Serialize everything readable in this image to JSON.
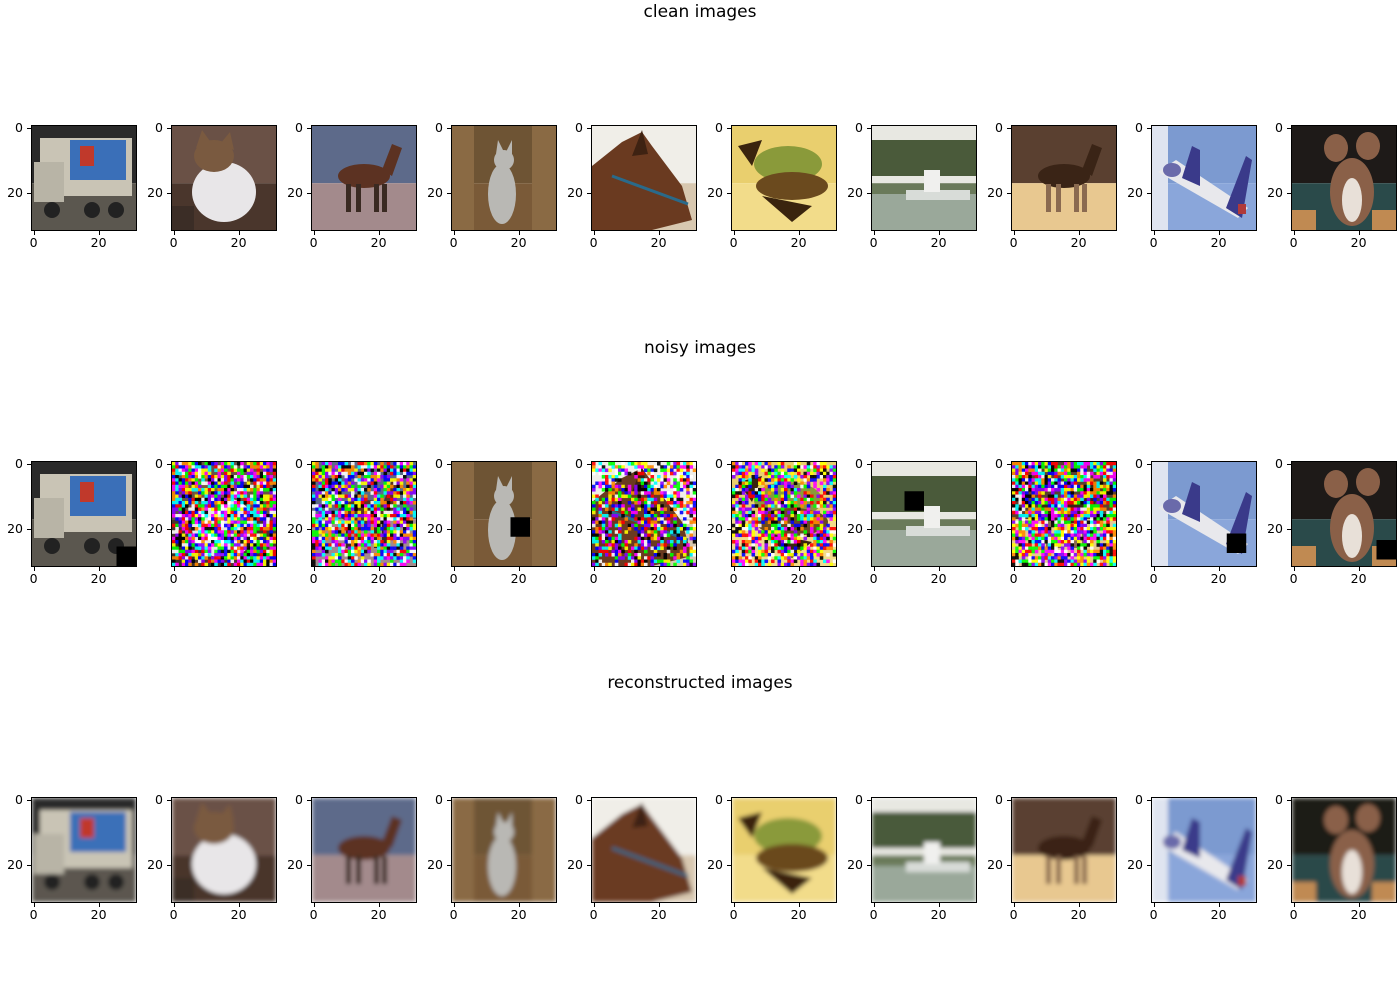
{
  "chart_data": {
    "type": "image-grid",
    "rows": [
      {
        "title": "clean images",
        "variant": "clean",
        "images": [
          {
            "subject": "truck",
            "sky": "#2a2a2a",
            "ground": "#5b574f",
            "main": "#c9c4b5",
            "accent": "#3a6fb8",
            "accent2": "#c0392b",
            "occlusion": null
          },
          {
            "subject": "cat",
            "sky": "#6a5146",
            "ground": "#4a362c",
            "main": "#e8e6e8",
            "accent": "#7a5a40",
            "accent2": "#3b2d26",
            "occlusion": null
          },
          {
            "subject": "horse",
            "sky": "#5d6a8a",
            "ground": "#a38a8c",
            "main": "#5c3222",
            "accent": "#3a2a22",
            "accent2": "#c8b6b5",
            "occlusion": null
          },
          {
            "subject": "cat-standing",
            "sky": "#6e5434",
            "ground": "#7a5a38",
            "main": "#b9b8b4",
            "accent": "#4b3a28",
            "accent2": "#8a6a44",
            "occlusion": null
          },
          {
            "subject": "horse-head",
            "sky": "#f0eee8",
            "ground": "#d8c8b0",
            "main": "#6a3a20",
            "accent": "#3e2212",
            "accent2": "#2a6a8a",
            "occlusion": null
          },
          {
            "subject": "frog",
            "sky": "#e9cf6e",
            "ground": "#f2dc8a",
            "main": "#6b4a1e",
            "accent": "#8a9a3a",
            "accent2": "#3a240e",
            "occlusion": null
          },
          {
            "subject": "ship",
            "sky": "#e8e8e2",
            "ground": "#6a7a5a",
            "main": "#d8dcd8",
            "accent": "#4a5a3a",
            "accent2": "#9aa89a",
            "occlusion": null
          },
          {
            "subject": "deer",
            "sky": "#5a4030",
            "ground": "#e8c890",
            "main": "#3a2416",
            "accent": "#8a6a50",
            "accent2": "#c8a070",
            "occlusion": null
          },
          {
            "subject": "airplane",
            "sky": "#7c9ad0",
            "ground": "#8aa6da",
            "main": "#e8e8ec",
            "accent": "#3a3a8a",
            "accent2": "#b03a3a",
            "occlusion": null
          },
          {
            "subject": "dog",
            "sky": "#1e1a18",
            "ground": "#2a4a4a",
            "main": "#8a6048",
            "accent": "#e8e0d8",
            "accent2": "#4a2e1e",
            "occlusion": null
          }
        ]
      },
      {
        "title": "noisy images",
        "variant": "noisy",
        "images": [
          {
            "subject": "truck",
            "noise": 0,
            "occlusion": [
              26,
              26,
              6
            ]
          },
          {
            "subject": "cat",
            "noise": 0.85,
            "occlusion": null
          },
          {
            "subject": "horse",
            "noise": 0.8,
            "occlusion": null
          },
          {
            "subject": "cat-standing",
            "noise": 0,
            "occlusion": [
              18,
              17,
              6
            ]
          },
          {
            "subject": "horse-head",
            "noise": 0.6,
            "occlusion": null
          },
          {
            "subject": "frog",
            "noise": 0.65,
            "occlusion": null
          },
          {
            "subject": "ship",
            "noise": 0,
            "occlusion": [
              10,
              9,
              6
            ]
          },
          {
            "subject": "deer",
            "noise": 0.85,
            "occlusion": null
          },
          {
            "subject": "airplane",
            "noise": 0,
            "occlusion": [
              23,
              22,
              6
            ]
          },
          {
            "subject": "dog",
            "noise": 0,
            "occlusion": [
              26,
              24,
              6
            ]
          }
        ]
      },
      {
        "title": "reconstructed images",
        "variant": "reconstructed",
        "images": [
          {
            "subject": "truck"
          },
          {
            "subject": "cat"
          },
          {
            "subject": "horse"
          },
          {
            "subject": "cat-standing"
          },
          {
            "subject": "horse-head"
          },
          {
            "subject": "frog"
          },
          {
            "subject": "ship"
          },
          {
            "subject": "deer"
          },
          {
            "subject": "airplane"
          },
          {
            "subject": "dog"
          }
        ]
      }
    ],
    "x_ticks": [
      0,
      20
    ],
    "y_ticks": [
      0,
      20
    ],
    "image_size": [
      32,
      32
    ],
    "grid": false
  }
}
